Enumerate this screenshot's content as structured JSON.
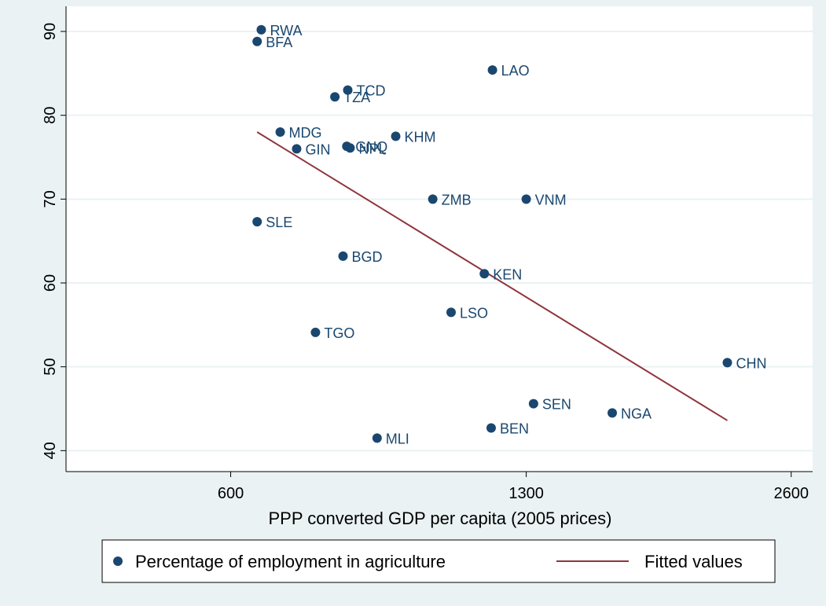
{
  "chart_data": {
    "type": "scatter",
    "xlabel": "PPP converted GDP per capita (2005 prices)",
    "ylabel": "",
    "x_scale": "log",
    "xlim": [
      390,
      2750
    ],
    "ylim": [
      37.5,
      93
    ],
    "x_ticks": [
      600,
      1300,
      2600
    ],
    "y_ticks": [
      40,
      50,
      60,
      70,
      80,
      90
    ],
    "grid": "horizontal",
    "legend_position": "bottom",
    "colors": {
      "points": "#1a476f",
      "fit": "#90353b",
      "plot_bg": "#ffffff",
      "outer_bg": "#eaf2f3",
      "grid": "#eaf2f3"
    },
    "series": [
      {
        "name": "Percentage of employment in agriculture",
        "kind": "scatter",
        "points": [
          {
            "label": "RWA",
            "x": 650,
            "y": 90.2
          },
          {
            "label": "BFA",
            "x": 643,
            "y": 88.8
          },
          {
            "label": "LAO",
            "x": 1190,
            "y": 85.4
          },
          {
            "label": "TCD",
            "x": 815,
            "y": 83.0
          },
          {
            "label": "TZA",
            "x": 788,
            "y": 82.2
          },
          {
            "label": "MDG",
            "x": 683,
            "y": 78.0
          },
          {
            "label": "KHM",
            "x": 924,
            "y": 77.5
          },
          {
            "label": "GNQ",
            "x": 813,
            "y": 76.3
          },
          {
            "label": "NPL",
            "x": 820,
            "y": 76.1
          },
          {
            "label": "GIN",
            "x": 713,
            "y": 76.0
          },
          {
            "label": "ZMB",
            "x": 1018,
            "y": 70.0
          },
          {
            "label": "VNM",
            "x": 1300,
            "y": 70.0
          },
          {
            "label": "SLE",
            "x": 643,
            "y": 67.3
          },
          {
            "label": "BGD",
            "x": 805,
            "y": 63.2
          },
          {
            "label": "KEN",
            "x": 1165,
            "y": 61.1
          },
          {
            "label": "LSO",
            "x": 1068,
            "y": 56.5
          },
          {
            "label": "TGO",
            "x": 749,
            "y": 54.1
          },
          {
            "label": "CHN",
            "x": 2200,
            "y": 50.5
          },
          {
            "label": "SEN",
            "x": 1325,
            "y": 45.6
          },
          {
            "label": "NGA",
            "x": 1628,
            "y": 44.5
          },
          {
            "label": "BEN",
            "x": 1186,
            "y": 42.7
          },
          {
            "label": "MLI",
            "x": 880,
            "y": 41.5
          }
        ]
      },
      {
        "name": "Fitted values",
        "kind": "line",
        "points": [
          {
            "x": 643,
            "y": 78.0
          },
          {
            "x": 2200,
            "y": 43.6
          }
        ]
      }
    ]
  }
}
